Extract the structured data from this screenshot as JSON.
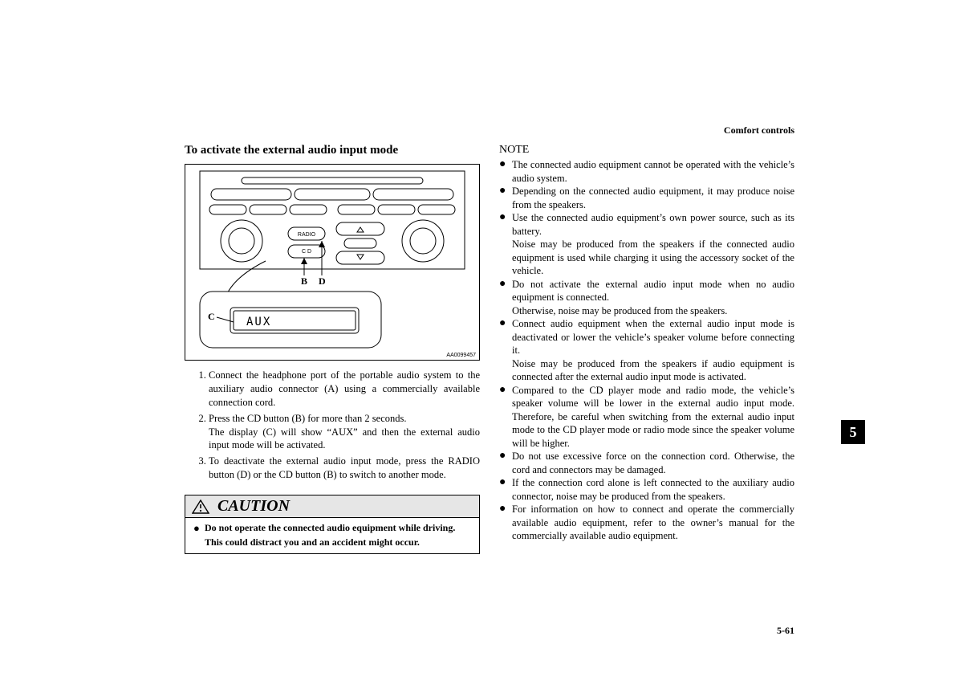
{
  "header": {
    "section": "Comfort controls"
  },
  "left": {
    "title": "To activate the external audio input mode",
    "figure": {
      "code": "AA0099457",
      "labels": {
        "B": "B",
        "C": "C",
        "D": "D"
      },
      "btn_radio": "RADIO",
      "btn_cd": "C D",
      "display_text": "AUX"
    },
    "steps": [
      "Connect the headphone port of the portable audio system to the auxiliary audio connector (A) using a commercially available connection cord.",
      "Press the CD button (B) for more than 2 seconds.\nThe display (C) will show “AUX” and then the external audio input mode will be activated.",
      "To deactivate the external audio input mode, press the RADIO button (D) or the CD button (B) to switch to another mode."
    ],
    "caution": {
      "heading": "CAUTION",
      "line1": "Do not operate the connected audio equipment while driving.",
      "line2": "This could distract you and an accident might occur."
    }
  },
  "right": {
    "note_title": "NOTE",
    "items": [
      {
        "text": "The connected audio equipment cannot be operated with the vehicle’s audio system."
      },
      {
        "text": "Depending on the connected audio equipment, it may produce noise from the speakers."
      },
      {
        "text": "Use the connected audio equipment’s own power source, such as its battery.",
        "cont": "Noise may be produced from the speakers if the connected audio equipment is used while charging it using the accessory socket of the vehicle."
      },
      {
        "text": "Do not activate the external audio input mode when no audio equipment is connected.",
        "cont": "Otherwise, noise may be produced from the speakers."
      },
      {
        "text": "Connect audio equipment when the external audio input mode is deactivated or lower the vehicle’s speaker volume before connecting it.",
        "cont": "Noise may be produced from the speakers if audio equipment is connected after the external audio input mode is activated."
      },
      {
        "text": "Compared to the CD player mode and radio mode, the vehicle’s speaker volume will be lower in the external audio input mode. Therefore, be careful when switching from the external audio input mode to the CD player mode or radio mode since the speaker volume will be higher."
      },
      {
        "text": "Do not use excessive force on the connection cord. Otherwise, the cord and connectors may be damaged."
      },
      {
        "text": "If the connection cord alone is left connected to the auxiliary audio connector, noise may be produced from the speakers."
      },
      {
        "text": "For information on how to connect and operate the commercially available audio equipment, refer to the owner’s manual for the commercially available audio equipment."
      }
    ]
  },
  "page_number": "5-61",
  "tab": "5",
  "colors": {
    "text": "#000000",
    "bg": "#ffffff",
    "caution_bg": "#e6e6e6",
    "tab_bg": "#000000",
    "tab_fg": "#ffffff"
  }
}
